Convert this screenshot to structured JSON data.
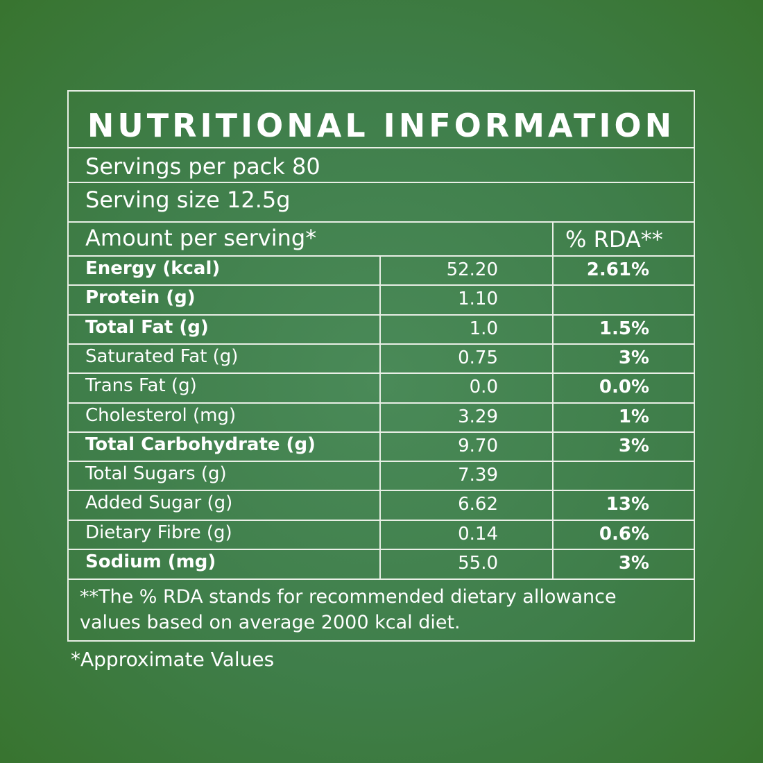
{
  "title": "NUTRITIONAL INFORMATION",
  "servings_per_pack": "Servings per pack 80",
  "serving_size": "Serving size 12.5g",
  "amount_header": "Amount per serving*",
  "rda_header": "% RDA**",
  "rows": [
    {
      "name": "Energy (kcal)",
      "value": "52.20",
      "rda": "2.61%",
      "bold": true
    },
    {
      "name": "Protein (g)",
      "value": "1.10",
      "rda": "",
      "bold": true
    },
    {
      "name": "Total Fat (g)",
      "value": "1.0",
      "rda": "1.5%",
      "bold": true
    },
    {
      "name": "Saturated Fat (g)",
      "value": "0.75",
      "rda": "3%",
      "bold": false
    },
    {
      "name": "Trans Fat (g)",
      "value": "0.0",
      "rda": "0.0%",
      "bold": false
    },
    {
      "name": "Cholesterol (mg)",
      "value": "3.29",
      "rda": "1%",
      "bold": false
    },
    {
      "name": "Total Carbohydrate (g)",
      "value": "9.70",
      "rda": "3%",
      "bold": true
    },
    {
      "name": "Total Sugars (g)",
      "value": "7.39",
      "rda": "",
      "bold": false
    },
    {
      "name": "Added  Sugar (g)",
      "value": "6.62",
      "rda": "13%",
      "bold": false
    },
    {
      "name": "Dietary Fibre (g)",
      "value": "0.14",
      "rda": "0.6%",
      "bold": false
    },
    {
      "name": "Sodium (mg)",
      "value": "55.0",
      "rda": "3%",
      "bold": true
    }
  ],
  "footnote_line1": "**The % RDA stands for recommended dietary allowance",
  "footnote_line2": "values based on average 2000 kcal diet.",
  "approx_note": "*Approximate Values",
  "colors": {
    "background": "#3f7e4a",
    "text": "#ffffff",
    "lines": "#e9efe6"
  }
}
